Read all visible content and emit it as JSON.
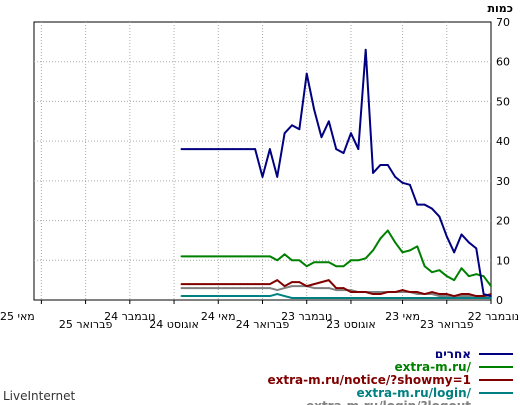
{
  "chart_data": {
    "type": "line",
    "ylabel": "כמות",
    "ylim": [
      0,
      70
    ],
    "yticks": [
      0,
      10,
      20,
      30,
      40,
      50,
      60,
      70
    ],
    "x_count": 43,
    "xtick_labels": [
      {
        "i": 0,
        "text": "נובמבר 22",
        "row": 1
      },
      {
        "i": 6,
        "text": "פברואר 23",
        "row": 2
      },
      {
        "i": 12,
        "text": "מאי 23",
        "row": 1
      },
      {
        "i": 19,
        "text": "אוגוסט 23",
        "row": 2
      },
      {
        "i": 25,
        "text": "נובמבר 23",
        "row": 1
      },
      {
        "i": 31,
        "text": "פברואר 24",
        "row": 2
      },
      {
        "i": 37,
        "text": "מאי 24",
        "row": 1
      },
      {
        "i": 43,
        "text": "אוגוסט 24",
        "row": 2
      },
      {
        "i": 49,
        "text": "נובמבר 24",
        "row": 1
      },
      {
        "i": 55,
        "text": "פברואר 25",
        "row": 2
      },
      {
        "i": 61,
        "text": "מאי 25",
        "row": 1
      }
    ],
    "grid": true,
    "legend_position": "bottom",
    "series": [
      {
        "name": "אחרים",
        "color": "#000080",
        "values": [
          1,
          1.5,
          13,
          14.5,
          16.5,
          12,
          16,
          21,
          23,
          24,
          24,
          29,
          29.5,
          31,
          34,
          34,
          32,
          63,
          38,
          42,
          37,
          38,
          45,
          41,
          48,
          57,
          43,
          44,
          42,
          31,
          38,
          31,
          38,
          38,
          38,
          38,
          38,
          38,
          38,
          38,
          38,
          38,
          38
        ]
      },
      {
        "name": "extra-m.ru/",
        "color": "#008000",
        "values": [
          3.5,
          6,
          6.5,
          6,
          8,
          5,
          6,
          7.5,
          7,
          8.5,
          13.5,
          12.5,
          12,
          14.5,
          17.5,
          15.5,
          12.5,
          10.5,
          10,
          10,
          8.5,
          8.5,
          9.5,
          9.5,
          9.5,
          8.5,
          10,
          10,
          11.5,
          10,
          11,
          11,
          11,
          11,
          11,
          11,
          11,
          11,
          11,
          11,
          11,
          11,
          11
        ]
      },
      {
        "name": "extra-m.ru/notice/?showmy=1",
        "color": "#800000",
        "values": [
          1.5,
          1,
          1,
          1.5,
          1.5,
          1,
          1.5,
          1.5,
          2,
          1.5,
          2,
          2,
          2.5,
          2,
          2,
          1.5,
          1.5,
          2,
          2,
          2,
          3,
          3,
          5,
          4.5,
          4,
          3.5,
          4.5,
          4.5,
          3.5,
          5,
          4,
          4,
          4,
          4,
          4,
          4,
          4,
          4,
          4,
          4,
          4,
          4,
          4
        ]
      },
      {
        "name": "extra-m.ru/login/",
        "color": "#008080",
        "values": [
          0.5,
          0.5,
          0.5,
          0.5,
          0.5,
          0.5,
          0.5,
          0.5,
          0.5,
          0.5,
          0.5,
          0.5,
          0.5,
          0.5,
          0.5,
          0.5,
          0.5,
          0.5,
          0.5,
          0.5,
          0.5,
          0.5,
          0.5,
          0.5,
          0.5,
          0.5,
          0.5,
          0.5,
          1,
          1.5,
          1,
          1,
          1,
          1,
          1,
          1,
          1,
          1,
          1,
          1,
          1,
          1,
          1
        ]
      },
      {
        "name": "extra-m.ru/login/?logout",
        "color": "#808080",
        "values": [
          0.5,
          1,
          1,
          1,
          1,
          1,
          1,
          1,
          1.5,
          1.5,
          1.5,
          2,
          2,
          2,
          2,
          2,
          2,
          2,
          2,
          2.5,
          2.5,
          2.5,
          3,
          3,
          3,
          3.5,
          3.5,
          3.5,
          3,
          2.5,
          3,
          3,
          3,
          3,
          3,
          3,
          3,
          3,
          3,
          3,
          3,
          3,
          3
        ]
      }
    ]
  },
  "brand": "LiveInternet"
}
